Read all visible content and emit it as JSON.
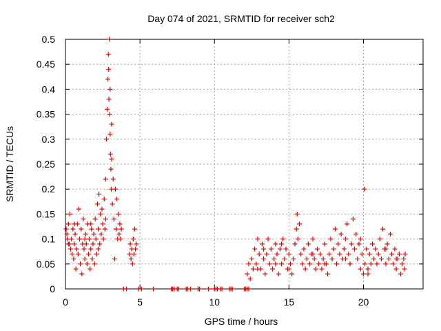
{
  "chart_data": {
    "type": "scatter",
    "title": "Day 074 of 2021, SRMTID for receiver sch2",
    "xlabel": "GPS time / hours",
    "ylabel": "SRMTID / TECUs",
    "xlim": [
      0,
      24
    ],
    "ylim": [
      0,
      0.5
    ],
    "x_ticks": [
      0,
      5,
      10,
      15,
      20
    ],
    "y_ticks": [
      0,
      0.05,
      0.1,
      0.15,
      0.2,
      0.25,
      0.3,
      0.35,
      0.4,
      0.45,
      0.5
    ],
    "x_tick_labels": [
      "0",
      "5",
      "10",
      "15",
      "20"
    ],
    "y_tick_labels": [
      "0",
      "0.05",
      "0.1",
      "0.15",
      "0.2",
      "0.25",
      "0.3",
      "0.35",
      "0.4",
      "0.45",
      "0.5"
    ],
    "grid": true,
    "marker": "+",
    "color": "#e00000",
    "series": [
      {
        "name": "SRMTID",
        "points": [
          [
            0.05,
            0.12
          ],
          [
            0.1,
            0.11
          ],
          [
            0.15,
            0.1
          ],
          [
            0.2,
            0.13
          ],
          [
            0.25,
            0.09
          ],
          [
            0.3,
            0.15
          ],
          [
            0.35,
            0.08
          ],
          [
            0.4,
            0.1
          ],
          [
            0.45,
            0.07
          ],
          [
            0.5,
            0.12
          ],
          [
            0.55,
            0.06
          ],
          [
            0.6,
            0.09
          ],
          [
            0.65,
            0.11
          ],
          [
            0.7,
            0.04
          ],
          [
            0.75,
            0.08
          ],
          [
            0.8,
            0.13
          ],
          [
            0.85,
            0.07
          ],
          [
            0.9,
            0.16
          ],
          [
            0.95,
            0.1
          ],
          [
            1.0,
            0.05
          ],
          [
            1.05,
            0.12
          ],
          [
            1.1,
            0.03
          ],
          [
            1.15,
            0.09
          ],
          [
            1.2,
            0.14
          ],
          [
            1.25,
            0.08
          ],
          [
            1.3,
            0.06
          ],
          [
            1.35,
            0.11
          ],
          [
            1.4,
            0.09
          ],
          [
            1.45,
            0.05
          ],
          [
            1.5,
            0.13
          ],
          [
            1.55,
            0.07
          ],
          [
            1.6,
            0.1
          ],
          [
            1.65,
            0.04
          ],
          [
            1.7,
            0.08
          ],
          [
            1.75,
            0.12
          ],
          [
            1.8,
            0.06
          ],
          [
            1.85,
            0.09
          ],
          [
            1.9,
            0.11
          ],
          [
            1.95,
            0.05
          ],
          [
            2.0,
            0.14
          ],
          [
            2.05,
            0.1
          ],
          [
            2.1,
            0.07
          ],
          [
            2.15,
            0.17
          ],
          [
            2.2,
            0.12
          ],
          [
            2.25,
            0.19
          ],
          [
            2.3,
            0.09
          ],
          [
            2.35,
            0.15
          ],
          [
            2.4,
            0.11
          ],
          [
            2.45,
            0.16
          ],
          [
            2.5,
            0.13
          ],
          [
            2.55,
            0.1
          ],
          [
            2.6,
            0.18
          ],
          [
            2.65,
            0.12
          ],
          [
            2.7,
            0.22
          ],
          [
            2.75,
            0.3
          ],
          [
            2.8,
            0.36
          ],
          [
            2.85,
            0.42
          ],
          [
            2.88,
            0.47
          ],
          [
            2.9,
            0.44
          ],
          [
            2.92,
            0.38
          ],
          [
            2.95,
            0.5
          ],
          [
            2.97,
            0.35
          ],
          [
            3.0,
            0.31
          ],
          [
            3.02,
            0.27
          ],
          [
            3.05,
            0.24
          ],
          [
            3.08,
            0.2
          ],
          [
            3.1,
            0.26
          ],
          [
            3.15,
            0.17
          ],
          [
            3.2,
            0.22
          ],
          [
            3.25,
            0.14
          ],
          [
            3.3,
            0.06
          ],
          [
            3.35,
            0.2
          ],
          [
            3.4,
            0.12
          ],
          [
            3.45,
            0.18
          ],
          [
            3.5,
            0.1
          ],
          [
            3.55,
            0.15
          ],
          [
            3.6,
            0.11
          ],
          [
            3.65,
            0.13
          ],
          [
            3.7,
            0.1
          ],
          [
            3.75,
            0.12
          ],
          [
            3.9,
            0.0
          ],
          [
            4.1,
            0.0
          ],
          [
            4.3,
            0.07
          ],
          [
            4.35,
            0.09
          ],
          [
            4.4,
            0.06
          ],
          [
            4.45,
            0.08
          ],
          [
            4.5,
            0.05
          ],
          [
            4.55,
            0.1
          ],
          [
            4.6,
            0.07
          ],
          [
            4.65,
            0.12
          ],
          [
            4.7,
            0.08
          ],
          [
            4.75,
            0.09
          ],
          [
            4.9,
            0.0
          ],
          [
            5.1,
            0.0
          ],
          [
            5.9,
            0.0
          ],
          [
            7.1,
            0.0
          ],
          [
            7.2,
            0.0
          ],
          [
            7.3,
            0.0
          ],
          [
            7.5,
            0.0
          ],
          [
            7.6,
            0.0
          ],
          [
            8.1,
            0.0
          ],
          [
            8.2,
            0.0
          ],
          [
            8.4,
            0.0
          ],
          [
            8.9,
            0.0
          ],
          [
            9.0,
            0.0
          ],
          [
            9.6,
            0.0
          ],
          [
            10.0,
            0.0
          ],
          [
            10.1,
            0.0
          ],
          [
            10.2,
            0.0
          ],
          [
            10.4,
            0.0
          ],
          [
            10.5,
            0.0
          ],
          [
            11.0,
            0.0
          ],
          [
            11.1,
            0.0
          ],
          [
            11.2,
            0.0
          ],
          [
            12.0,
            0.0
          ],
          [
            12.1,
            0.0
          ],
          [
            12.2,
            0.0
          ],
          [
            12.3,
            0.0
          ],
          [
            12.2,
            0.03
          ],
          [
            12.3,
            0.05
          ],
          [
            12.4,
            0.02
          ],
          [
            12.5,
            0.06
          ],
          [
            12.6,
            0.04
          ],
          [
            12.7,
            0.08
          ],
          [
            12.8,
            0.05
          ],
          [
            12.9,
            0.1
          ],
          [
            13.0,
            0.07
          ],
          [
            13.1,
            0.04
          ],
          [
            13.2,
            0.09
          ],
          [
            13.3,
            0.06
          ],
          [
            13.4,
            0.03
          ],
          [
            13.5,
            0.07
          ],
          [
            13.6,
            0.1
          ],
          [
            13.7,
            0.05
          ],
          [
            13.8,
            0.08
          ],
          [
            13.9,
            0.04
          ],
          [
            14.0,
            0.06
          ],
          [
            14.1,
            0.09
          ],
          [
            14.2,
            0.07
          ],
          [
            14.3,
            0.03
          ],
          [
            14.4,
            0.08
          ],
          [
            14.5,
            0.05
          ],
          [
            14.6,
            0.1
          ],
          [
            14.7,
            0.06
          ],
          [
            14.8,
            0.08
          ],
          [
            14.9,
            0.04
          ],
          [
            15.0,
            0.07
          ],
          [
            15.1,
            0.05
          ],
          [
            15.2,
            0.03
          ],
          [
            15.3,
            0.06
          ],
          [
            15.4,
            0.09
          ],
          [
            15.5,
            0.12
          ],
          [
            15.55,
            0.15
          ],
          [
            15.6,
            0.1
          ],
          [
            15.7,
            0.13
          ],
          [
            15.8,
            0.07
          ],
          [
            15.9,
            0.05
          ],
          [
            16.0,
            0.08
          ],
          [
            16.1,
            0.04
          ],
          [
            16.2,
            0.06
          ],
          [
            16.3,
            0.09
          ],
          [
            16.4,
            0.05
          ],
          [
            16.5,
            0.07
          ],
          [
            16.6,
            0.1
          ],
          [
            16.7,
            0.06
          ],
          [
            16.8,
            0.04
          ],
          [
            16.9,
            0.08
          ],
          [
            17.0,
            0.05
          ],
          [
            17.1,
            0.07
          ],
          [
            17.2,
            0.04
          ],
          [
            17.3,
            0.06
          ],
          [
            17.4,
            0.09
          ],
          [
            17.5,
            0.05
          ],
          [
            17.6,
            0.03
          ],
          [
            17.7,
            0.07
          ],
          [
            17.8,
            0.1
          ],
          [
            17.9,
            0.06
          ],
          [
            18.0,
            0.08
          ],
          [
            18.1,
            0.12
          ],
          [
            18.2,
            0.05
          ],
          [
            18.3,
            0.09
          ],
          [
            18.4,
            0.07
          ],
          [
            18.5,
            0.11
          ],
          [
            18.6,
            0.06
          ],
          [
            18.7,
            0.08
          ],
          [
            18.8,
            0.1
          ],
          [
            18.9,
            0.13
          ],
          [
            19.0,
            0.07
          ],
          [
            19.1,
            0.05
          ],
          [
            19.2,
            0.09
          ],
          [
            19.3,
            0.14
          ],
          [
            19.4,
            0.08
          ],
          [
            19.5,
            0.11
          ],
          [
            19.6,
            0.06
          ],
          [
            19.7,
            0.09
          ],
          [
            19.8,
            0.04
          ],
          [
            19.9,
            0.07
          ],
          [
            20.0,
            0.03
          ],
          [
            20.05,
            0.2
          ],
          [
            20.1,
            0.05
          ],
          [
            20.2,
            0.08
          ],
          [
            20.3,
            0.04
          ],
          [
            20.4,
            0.07
          ],
          [
            20.5,
            0.05
          ],
          [
            20.6,
            0.09
          ],
          [
            20.7,
            0.06
          ],
          [
            20.8,
            0.08
          ],
          [
            20.9,
            0.05
          ],
          [
            21.0,
            0.07
          ],
          [
            21.1,
            0.1
          ],
          [
            21.2,
            0.06
          ],
          [
            21.3,
            0.12
          ],
          [
            21.4,
            0.08
          ],
          [
            21.5,
            0.05
          ],
          [
            21.6,
            0.09
          ],
          [
            21.7,
            0.06
          ],
          [
            21.8,
            0.11
          ],
          [
            21.9,
            0.07
          ],
          [
            22.0,
            0.05
          ],
          [
            22.1,
            0.08
          ],
          [
            22.2,
            0.04
          ],
          [
            22.3,
            0.06
          ],
          [
            22.4,
            0.07
          ],
          [
            22.5,
            0.03
          ],
          [
            22.6,
            0.05
          ],
          [
            22.7,
            0.06
          ],
          [
            22.75,
            0.04
          ],
          [
            22.8,
            0.07
          ],
          [
            0.2,
            0.09
          ],
          [
            0.6,
            0.13
          ],
          [
            1.3,
            0.1
          ],
          [
            1.7,
            0.13
          ],
          [
            2.2,
            0.08
          ],
          [
            2.7,
            0.14
          ],
          [
            3.0,
            0.4
          ],
          [
            3.1,
            0.33
          ],
          [
            13.3,
            0.08
          ],
          [
            14.5,
            0.09
          ],
          [
            15.0,
            0.04
          ],
          [
            16.6,
            0.07
          ],
          [
            17.4,
            0.05
          ],
          [
            18.8,
            0.06
          ],
          [
            19.8,
            0.1
          ],
          [
            20.3,
            0.03
          ],
          [
            21.5,
            0.08
          ],
          [
            22.2,
            0.06
          ],
          [
            12.9,
            0.04
          ],
          [
            14.1,
            0.05
          ]
        ]
      }
    ]
  }
}
